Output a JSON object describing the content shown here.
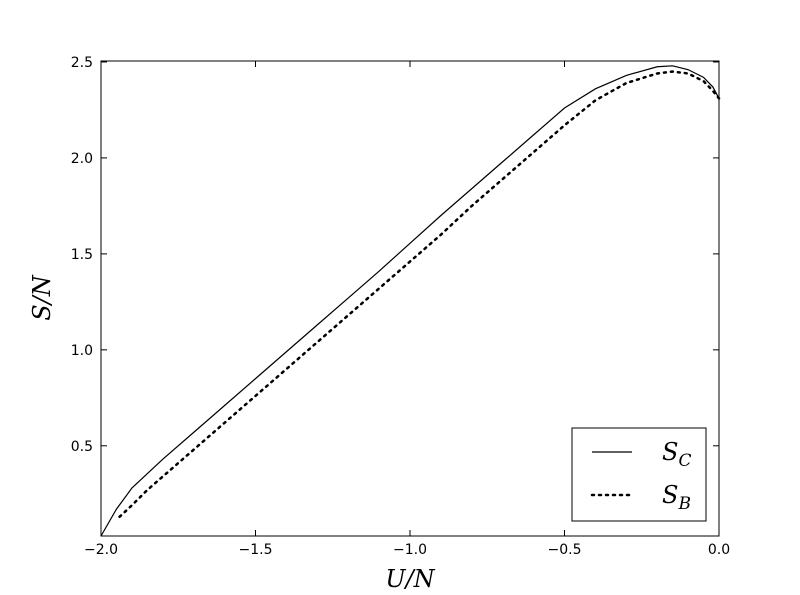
{
  "chart_data": {
    "type": "line",
    "xlabel": "U/N",
    "ylabel": "S/N",
    "xlim": [
      -2,
      0
    ],
    "ylim": [
      0.03,
      2.505
    ],
    "xticks": [
      {
        "value": -2,
        "label": "−2.0"
      },
      {
        "value": -1.5,
        "label": "−1.5"
      },
      {
        "value": -1,
        "label": "−1.0"
      },
      {
        "value": -0.5,
        "label": "−0.5"
      },
      {
        "value": 0,
        "label": "0.0"
      }
    ],
    "yticks": [
      0.5,
      {
        "value": 1,
        "label": "1.0"
      },
      1.5,
      {
        "value": 2,
        "label": "2.0"
      },
      2.5
    ],
    "legend": "lower right",
    "series": [
      {
        "name": "S_C",
        "color": "#000000",
        "style": "solid",
        "x": [
          -2,
          -1.95,
          -1.9,
          -1.8,
          -1.7,
          -1.6,
          -1.5,
          -1.4,
          -1.3,
          -1.2,
          -1.1,
          -1.0,
          -0.9,
          -0.8,
          -0.7,
          -0.6,
          -0.5,
          -0.4,
          -0.3,
          -0.2,
          -0.15,
          -0.1,
          -0.05,
          -0.02,
          0
        ],
        "values": [
          0.03,
          0.17,
          0.28,
          0.43,
          0.57,
          0.71,
          0.85,
          0.99,
          1.13,
          1.27,
          1.41,
          1.555,
          1.7,
          1.84,
          1.98,
          2.12,
          2.26,
          2.36,
          2.43,
          2.475,
          2.48,
          2.46,
          2.42,
          2.37,
          2.31
        ]
      },
      {
        "name": "S_B",
        "color": "#000000",
        "style": "dotted",
        "x": [
          -1.94,
          -1.9,
          -1.85,
          -1.8,
          -1.7,
          -1.6,
          -1.5,
          -1.4,
          -1.3,
          -1.2,
          -1.1,
          -1.0,
          -0.9,
          -0.8,
          -0.7,
          -0.6,
          -0.5,
          -0.4,
          -0.3,
          -0.2,
          -0.15,
          -0.1,
          -0.05,
          -0.02,
          0
        ],
        "values": [
          0.13,
          0.19,
          0.27,
          0.34,
          0.48,
          0.62,
          0.76,
          0.9,
          1.04,
          1.18,
          1.32,
          1.46,
          1.6,
          1.75,
          1.89,
          2.03,
          2.17,
          2.3,
          2.39,
          2.44,
          2.45,
          2.44,
          2.4,
          2.35,
          2.31
        ]
      }
    ]
  }
}
